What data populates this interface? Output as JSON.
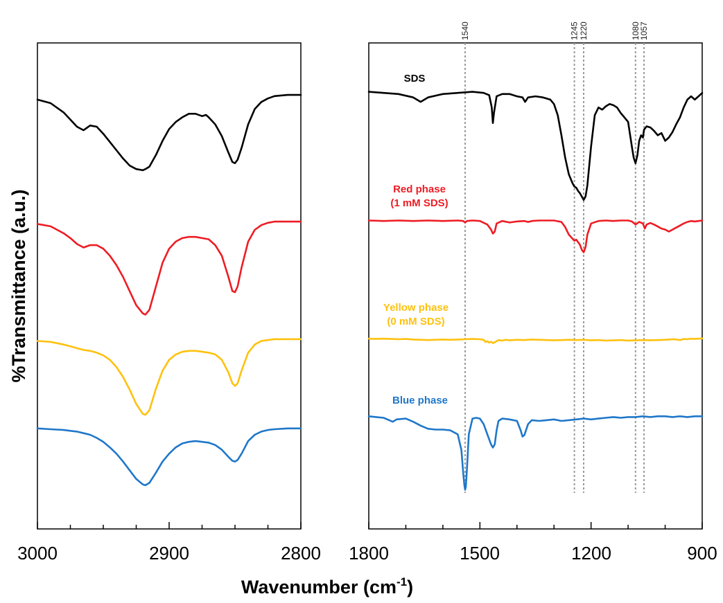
{
  "chart_data": [
    {
      "type": "line",
      "ylabel": "%Transmittance (a.u.)",
      "xlim": [
        3000,
        2800
      ],
      "xticks": [
        "3000",
        "2900",
        "2800"
      ],
      "colors": [
        "#000000",
        "#ee1c24",
        "#fec10e",
        "#1f77c9"
      ],
      "series": [
        {
          "x": [
            3000,
            2990,
            2980,
            2975,
            2970,
            2965,
            2960,
            2955,
            2950,
            2945,
            2940,
            2935,
            2930,
            2925,
            2920,
            2918,
            2915,
            2910,
            2905,
            2900,
            2895,
            2890,
            2885,
            2880,
            2875,
            2872,
            2870,
            2865,
            2860,
            2855,
            2852,
            2850,
            2848,
            2845,
            2840,
            2835,
            2830,
            2825,
            2820,
            2810,
            2800
          ],
          "y": [
            0.93,
            0.9,
            0.82,
            0.76,
            0.7,
            0.67,
            0.71,
            0.7,
            0.64,
            0.57,
            0.5,
            0.43,
            0.37,
            0.34,
            0.33,
            0.34,
            0.36,
            0.46,
            0.58,
            0.68,
            0.74,
            0.78,
            0.81,
            0.81,
            0.79,
            0.8,
            0.78,
            0.72,
            0.62,
            0.48,
            0.4,
            0.39,
            0.42,
            0.52,
            0.72,
            0.85,
            0.91,
            0.94,
            0.96,
            0.97,
            0.97
          ]
        },
        {
          "x": [
            3000,
            2990,
            2980,
            2975,
            2970,
            2965,
            2960,
            2955,
            2950,
            2945,
            2940,
            2935,
            2930,
            2925,
            2920,
            2918,
            2915,
            2910,
            2905,
            2900,
            2895,
            2890,
            2885,
            2880,
            2875,
            2870,
            2865,
            2860,
            2855,
            2852,
            2850,
            2848,
            2845,
            2840,
            2835,
            2830,
            2825,
            2820,
            2810,
            2800
          ],
          "y": [
            0.95,
            0.93,
            0.87,
            0.83,
            0.78,
            0.75,
            0.77,
            0.77,
            0.74,
            0.68,
            0.6,
            0.5,
            0.38,
            0.26,
            0.19,
            0.18,
            0.22,
            0.42,
            0.62,
            0.74,
            0.8,
            0.83,
            0.84,
            0.84,
            0.83,
            0.82,
            0.77,
            0.68,
            0.5,
            0.38,
            0.37,
            0.42,
            0.58,
            0.8,
            0.9,
            0.94,
            0.96,
            0.97,
            0.97,
            0.97
          ]
        },
        {
          "x": [
            3000,
            2990,
            2980,
            2975,
            2970,
            2965,
            2960,
            2955,
            2950,
            2945,
            2940,
            2935,
            2930,
            2925,
            2920,
            2918,
            2915,
            2910,
            2905,
            2900,
            2895,
            2890,
            2885,
            2880,
            2875,
            2870,
            2865,
            2860,
            2855,
            2852,
            2850,
            2848,
            2845,
            2840,
            2835,
            2830,
            2825,
            2820,
            2810,
            2800
          ],
          "y": [
            0.95,
            0.94,
            0.91,
            0.89,
            0.87,
            0.85,
            0.84,
            0.82,
            0.79,
            0.74,
            0.66,
            0.55,
            0.41,
            0.25,
            0.14,
            0.13,
            0.18,
            0.42,
            0.62,
            0.74,
            0.8,
            0.83,
            0.84,
            0.84,
            0.83,
            0.82,
            0.8,
            0.74,
            0.6,
            0.48,
            0.45,
            0.48,
            0.62,
            0.82,
            0.91,
            0.95,
            0.96,
            0.97,
            0.97,
            0.97
          ]
        },
        {
          "x": [
            3000,
            2990,
            2980,
            2975,
            2970,
            2965,
            2960,
            2955,
            2950,
            2945,
            2940,
            2935,
            2930,
            2925,
            2920,
            2918,
            2915,
            2910,
            2905,
            2900,
            2895,
            2890,
            2885,
            2880,
            2875,
            2870,
            2865,
            2860,
            2855,
            2852,
            2850,
            2848,
            2845,
            2840,
            2835,
            2830,
            2825,
            2820,
            2810,
            2800
          ],
          "y": [
            0.94,
            0.93,
            0.92,
            0.91,
            0.9,
            0.88,
            0.86,
            0.82,
            0.77,
            0.7,
            0.62,
            0.52,
            0.41,
            0.3,
            0.23,
            0.22,
            0.25,
            0.38,
            0.52,
            0.62,
            0.7,
            0.75,
            0.77,
            0.78,
            0.77,
            0.76,
            0.73,
            0.67,
            0.58,
            0.53,
            0.52,
            0.54,
            0.62,
            0.78,
            0.86,
            0.9,
            0.92,
            0.93,
            0.94,
            0.94
          ]
        }
      ]
    },
    {
      "type": "line",
      "xlim": [
        1800,
        900
      ],
      "xticks": [
        "1800",
        "1500",
        "1200",
        "900"
      ],
      "colors": [
        "#000000",
        "#ee1c24",
        "#fec10e",
        "#1f77c9"
      ],
      "series": [
        {
          "name": "SDS",
          "x": [
            1800,
            1760,
            1720,
            1680,
            1660,
            1640,
            1600,
            1560,
            1520,
            1490,
            1475,
            1468,
            1465,
            1462,
            1455,
            1440,
            1420,
            1400,
            1385,
            1378,
            1370,
            1350,
            1330,
            1310,
            1300,
            1290,
            1280,
            1270,
            1260,
            1250,
            1245,
            1240,
            1235,
            1230,
            1225,
            1220,
            1215,
            1210,
            1200,
            1190,
            1180,
            1170,
            1160,
            1150,
            1140,
            1130,
            1120,
            1110,
            1100,
            1090,
            1085,
            1080,
            1075,
            1070,
            1065,
            1060,
            1057,
            1050,
            1040,
            1030,
            1020,
            1010,
            1000,
            990,
            980,
            970,
            960,
            950,
            940,
            930,
            920,
            910,
            900
          ],
          "y": [
            0.99,
            0.98,
            0.97,
            0.94,
            0.9,
            0.94,
            0.97,
            0.98,
            0.99,
            0.98,
            0.96,
            0.85,
            0.71,
            0.8,
            0.95,
            0.97,
            0.97,
            0.95,
            0.94,
            0.9,
            0.94,
            0.95,
            0.94,
            0.92,
            0.88,
            0.78,
            0.6,
            0.4,
            0.25,
            0.17,
            0.14,
            0.13,
            0.1,
            0.08,
            0.05,
            0.02,
            0.05,
            0.15,
            0.5,
            0.78,
            0.85,
            0.83,
            0.86,
            0.88,
            0.87,
            0.85,
            0.8,
            0.76,
            0.72,
            0.5,
            0.4,
            0.35,
            0.42,
            0.55,
            0.6,
            0.58,
            0.65,
            0.68,
            0.67,
            0.64,
            0.6,
            0.62,
            0.55,
            0.58,
            0.63,
            0.7,
            0.76,
            0.85,
            0.92,
            0.95,
            0.92,
            0.95,
            0.98
          ]
        },
        {
          "name": "Red phase\n(1 mM SDS)",
          "x": [
            1800,
            1760,
            1720,
            1680,
            1640,
            1600,
            1560,
            1545,
            1540,
            1535,
            1520,
            1500,
            1480,
            1470,
            1465,
            1460,
            1455,
            1440,
            1420,
            1400,
            1380,
            1370,
            1360,
            1340,
            1300,
            1280,
            1270,
            1260,
            1250,
            1245,
            1240,
            1235,
            1230,
            1225,
            1220,
            1215,
            1210,
            1200,
            1180,
            1160,
            1140,
            1120,
            1100,
            1090,
            1080,
            1070,
            1060,
            1055,
            1050,
            1040,
            1030,
            1020,
            1010,
            1000,
            990,
            980,
            970,
            960,
            950,
            940,
            930,
            920,
            910,
            900
          ],
          "y": [
            0.98,
            0.97,
            0.98,
            0.97,
            0.98,
            0.97,
            0.98,
            0.97,
            0.94,
            0.97,
            0.98,
            0.97,
            0.9,
            0.8,
            0.72,
            0.76,
            0.92,
            0.97,
            0.94,
            0.96,
            0.97,
            0.95,
            0.97,
            0.98,
            0.98,
            0.95,
            0.85,
            0.7,
            0.62,
            0.58,
            0.6,
            0.55,
            0.5,
            0.4,
            0.35,
            0.45,
            0.7,
            0.92,
            0.97,
            0.98,
            0.97,
            0.98,
            0.98,
            0.96,
            0.9,
            0.95,
            0.92,
            0.82,
            0.9,
            0.93,
            0.9,
            0.86,
            0.82,
            0.8,
            0.76,
            0.8,
            0.84,
            0.88,
            0.92,
            0.95,
            0.97,
            0.96,
            0.97,
            0.98
          ]
        },
        {
          "name": "Yellow phase\n(0 mM SDS)",
          "x": [
            1800,
            1780,
            1760,
            1740,
            1720,
            1700,
            1680,
            1660,
            1640,
            1620,
            1600,
            1580,
            1560,
            1540,
            1520,
            1500,
            1490,
            1485,
            1480,
            1475,
            1470,
            1465,
            1460,
            1455,
            1450,
            1440,
            1430,
            1420,
            1400,
            1380,
            1360,
            1340,
            1320,
            1300,
            1280,
            1260,
            1240,
            1220,
            1200,
            1180,
            1160,
            1140,
            1120,
            1100,
            1080,
            1060,
            1040,
            1020,
            1000,
            990,
            980,
            970,
            960,
            950,
            940,
            930,
            920,
            910,
            900
          ],
          "y": [
            0.97,
            0.96,
            0.97,
            0.96,
            0.95,
            0.96,
            0.94,
            0.93,
            0.92,
            0.93,
            0.94,
            0.93,
            0.94,
            0.95,
            0.96,
            0.95,
            0.93,
            0.85,
            0.88,
            0.83,
            0.86,
            0.81,
            0.84,
            0.88,
            0.92,
            0.9,
            0.93,
            0.91,
            0.93,
            0.92,
            0.94,
            0.93,
            0.92,
            0.91,
            0.92,
            0.93,
            0.92,
            0.93,
            0.91,
            0.92,
            0.9,
            0.91,
            0.92,
            0.9,
            0.91,
            0.92,
            0.91,
            0.92,
            0.93,
            0.94,
            0.95,
            0.94,
            0.92,
            0.96,
            0.95,
            0.97,
            0.96,
            0.97,
            0.98
          ]
        },
        {
          "name": "Blue phase",
          "x": [
            1800,
            1780,
            1760,
            1745,
            1735,
            1725,
            1700,
            1680,
            1660,
            1640,
            1620,
            1600,
            1580,
            1560,
            1550,
            1545,
            1542,
            1540,
            1538,
            1535,
            1530,
            1520,
            1510,
            1500,
            1490,
            1480,
            1470,
            1465,
            1460,
            1455,
            1450,
            1440,
            1420,
            1400,
            1390,
            1385,
            1380,
            1370,
            1360,
            1340,
            1320,
            1300,
            1280,
            1260,
            1240,
            1220,
            1200,
            1180,
            1160,
            1140,
            1120,
            1100,
            1080,
            1060,
            1040,
            1020,
            1000,
            980,
            960,
            940,
            920,
            900
          ],
          "y": [
            0.98,
            0.97,
            0.96,
            0.93,
            0.91,
            0.94,
            0.95,
            0.91,
            0.86,
            0.82,
            0.81,
            0.81,
            0.8,
            0.75,
            0.55,
            0.25,
            0.1,
            0.04,
            0.08,
            0.3,
            0.75,
            0.95,
            0.96,
            0.95,
            0.88,
            0.75,
            0.62,
            0.58,
            0.62,
            0.8,
            0.92,
            0.95,
            0.94,
            0.92,
            0.8,
            0.72,
            0.74,
            0.88,
            0.93,
            0.92,
            0.93,
            0.94,
            0.92,
            0.93,
            0.94,
            0.95,
            0.94,
            0.95,
            0.96,
            0.97,
            0.96,
            0.97,
            0.97,
            0.98,
            0.97,
            0.98,
            0.98,
            0.97,
            0.98,
            0.97,
            0.98,
            0.98
          ]
        }
      ],
      "reference_lines": [
        {
          "x": 1540,
          "label": "1540"
        },
        {
          "x": 1245,
          "label": "1245"
        },
        {
          "x": 1220,
          "label": "1220"
        },
        {
          "x": 1080,
          "label": "1080"
        },
        {
          "x": 1057,
          "label": "1057"
        }
      ]
    }
  ],
  "xlabel_main": "Wavenumber (cm",
  "xlabel_sup": "-1",
  "xlabel_close": ")"
}
